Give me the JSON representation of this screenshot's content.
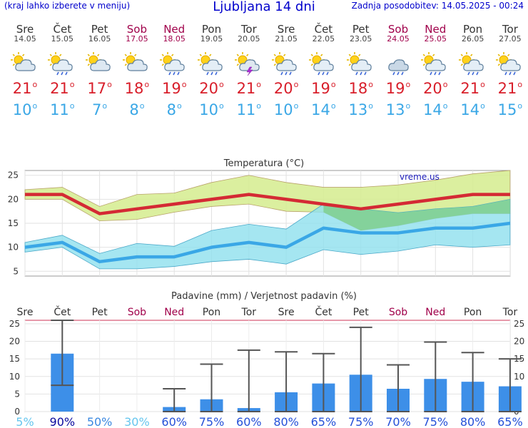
{
  "header": {
    "note": "(kraj lahko izberete v meniju)",
    "title": "Ljubljana 14 dni",
    "updated": "Zadnja posodobitev: 14.05.2025 - 00:24"
  },
  "days": [
    {
      "name": "Sre",
      "date": "14.05",
      "weekend": false,
      "icon": "partly-cloudy-icon",
      "max": "21",
      "min": "10"
    },
    {
      "name": "Čet",
      "date": "15.05",
      "weekend": false,
      "icon": "sun-cloud-rain-icon",
      "max": "21",
      "min": "11"
    },
    {
      "name": "Pet",
      "date": "16.05",
      "weekend": false,
      "icon": "partly-cloudy-icon",
      "max": "17",
      "min": "7"
    },
    {
      "name": "Sob",
      "date": "17.05",
      "weekend": true,
      "icon": "partly-cloudy-icon",
      "max": "18",
      "min": "8"
    },
    {
      "name": "Ned",
      "date": "18.05",
      "weekend": true,
      "icon": "sun-cloud-rain-icon",
      "max": "19",
      "min": "8"
    },
    {
      "name": "Pon",
      "date": "19.05",
      "weekend": false,
      "icon": "sun-cloud-rain-icon",
      "max": "20",
      "min": "10"
    },
    {
      "name": "Tor",
      "date": "20.05",
      "weekend": false,
      "icon": "thunderstorm-icon",
      "max": "21",
      "min": "11"
    },
    {
      "name": "Sre",
      "date": "21.05",
      "weekend": false,
      "icon": "sun-cloud-rain-icon",
      "max": "20",
      "min": "10"
    },
    {
      "name": "Čet",
      "date": "22.05",
      "weekend": false,
      "icon": "sun-cloud-rain-icon",
      "max": "19",
      "min": "14"
    },
    {
      "name": "Pet",
      "date": "23.05",
      "weekend": false,
      "icon": "sun-cloud-rain-icon",
      "max": "18",
      "min": "13"
    },
    {
      "name": "Sob",
      "date": "24.05",
      "weekend": true,
      "icon": "cloud-rain-icon",
      "max": "19",
      "min": "13"
    },
    {
      "name": "Ned",
      "date": "25.05",
      "weekend": true,
      "icon": "sun-cloud-rain-icon",
      "max": "20",
      "min": "14"
    },
    {
      "name": "Pon",
      "date": "26.05",
      "weekend": false,
      "icon": "sun-cloud-rain-icon",
      "max": "21",
      "min": "14"
    },
    {
      "name": "Tor",
      "date": "27.05",
      "weekend": false,
      "icon": "sun-cloud-rain-icon",
      "max": "21",
      "min": "15"
    }
  ],
  "chart_data": [
    {
      "type": "line",
      "title": "Temperatura (°C)",
      "watermark": "vreme.us",
      "x": [
        "14.05",
        "15.05",
        "16.05",
        "17.05",
        "18.05",
        "19.05",
        "20.05",
        "21.05",
        "22.05",
        "23.05",
        "24.05",
        "25.05",
        "26.05",
        "27.05"
      ],
      "ylim": [
        4,
        26
      ],
      "yticks": [
        5,
        10,
        15,
        20,
        25
      ],
      "grid": true,
      "series": [
        {
          "role": "max",
          "color": "#d42a34",
          "values": [
            21,
            21,
            17,
            18,
            19,
            20,
            21,
            20,
            19,
            18,
            19,
            20,
            21,
            21
          ]
        },
        {
          "role": "max_range_high",
          "values": [
            22,
            22.5,
            18.5,
            21,
            21.3,
            23.5,
            25,
            23.5,
            22.5,
            22.5,
            23,
            24,
            25.3,
            26
          ]
        },
        {
          "role": "max_range_low",
          "values": [
            20,
            20,
            15.5,
            15.8,
            17.3,
            18.5,
            19,
            17.5,
            17.3,
            13.5,
            14.5,
            16,
            17,
            17
          ]
        },
        {
          "role": "min",
          "color": "#3aa7e6",
          "values": [
            10,
            11,
            7,
            8,
            8,
            10,
            11,
            10,
            14,
            13,
            13,
            14,
            14,
            15
          ]
        },
        {
          "role": "min_range_high",
          "values": [
            11,
            12.5,
            8.7,
            10.8,
            10.2,
            13.5,
            14.8,
            13.8,
            19,
            18,
            17.2,
            18,
            18.5,
            20
          ]
        },
        {
          "role": "min_range_low",
          "values": [
            9,
            10,
            5.5,
            5.5,
            6,
            7,
            7.5,
            6.5,
            9.5,
            8.5,
            9.2,
            10.5,
            10,
            10.5
          ]
        }
      ]
    },
    {
      "type": "bar",
      "title": "Padavine (mm) / Verjetnost padavin (%)",
      "categories": [
        "Sre",
        "Čet",
        "Pet",
        "Sob",
        "Ned",
        "Pon",
        "Tor",
        "Sre",
        "Čet",
        "Pet",
        "Sob",
        "Ned",
        "Pon",
        "Tor"
      ],
      "weekend": [
        false,
        false,
        false,
        true,
        true,
        false,
        false,
        false,
        false,
        false,
        true,
        true,
        false,
        false
      ],
      "values": [
        0,
        16.5,
        0,
        0,
        1.3,
        3.5,
        1,
        5.5,
        8,
        10.5,
        6.5,
        9.3,
        8.5,
        7.2
      ],
      "range_low": [
        0,
        7.5,
        0,
        0,
        0,
        0,
        0,
        0,
        0,
        0,
        0,
        0,
        0,
        0
      ],
      "range_high": [
        0,
        26,
        0,
        0,
        6.5,
        13.5,
        17.5,
        17,
        16.5,
        24,
        13.3,
        19.8,
        16.8,
        15
      ],
      "probability": [
        "5%",
        "90%",
        "50%",
        "30%",
        "60%",
        "75%",
        "60%",
        "80%",
        "65%",
        "75%",
        "70%",
        "75%",
        "80%",
        "65%"
      ],
      "ylim": [
        0,
        26
      ],
      "yticks": [
        0,
        5,
        10,
        15,
        20,
        25
      ]
    }
  ],
  "colors": {
    "header_blue": "#0000cc",
    "weekend": "#a0004a",
    "max_temp": "#d81e2a",
    "min_temp": "#3aa7e6",
    "max_band": "#d5ec8e",
    "min_band": "#8fe0ee",
    "overlap": "#7fcf8f",
    "bar": "#3d8fe8"
  }
}
